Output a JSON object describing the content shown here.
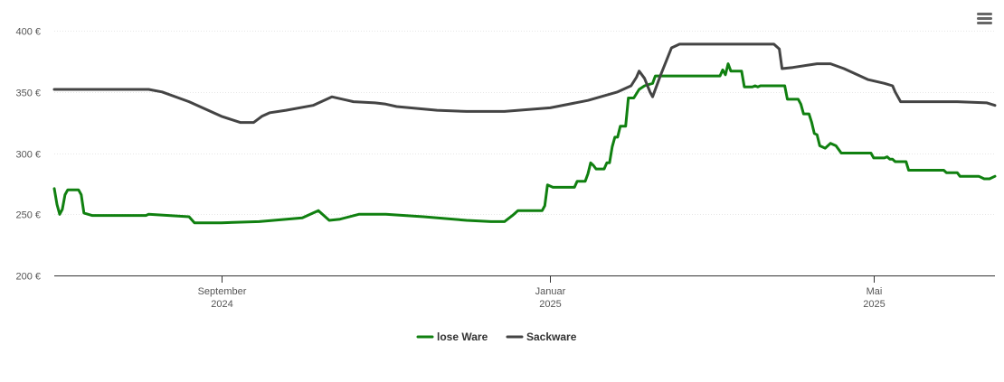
{
  "menu": {
    "icon": "hamburger-menu-icon"
  },
  "chart_data": {
    "type": "line",
    "ylim": [
      200,
      400
    ],
    "y_ticks": [
      {
        "value": 200,
        "label": "200 €"
      },
      {
        "value": 250,
        "label": "250 €"
      },
      {
        "value": 300,
        "label": "300 €"
      },
      {
        "value": 350,
        "label": "350 €"
      },
      {
        "value": 400,
        "label": "400 €"
      }
    ],
    "x_range": [
      "2024-07-01",
      "2025-06-15"
    ],
    "x_ticks": [
      {
        "date": "2024-09-01",
        "label_line1": "September",
        "label_line2": "2024"
      },
      {
        "date": "2025-01-01",
        "label_line1": "Januar",
        "label_line2": "2025"
      },
      {
        "date": "2025-05-01",
        "label_line1": "Mai",
        "label_line2": "2025"
      }
    ],
    "grid": true,
    "legend_position": "bottom-center",
    "series": [
      {
        "name": "lose Ware",
        "color": "#108010",
        "points": [
          [
            "2024-07-01",
            271
          ],
          [
            "2024-07-02",
            258
          ],
          [
            "2024-07-03",
            250
          ],
          [
            "2024-07-04",
            254
          ],
          [
            "2024-07-05",
            266
          ],
          [
            "2024-07-06",
            270
          ],
          [
            "2024-07-10",
            270
          ],
          [
            "2024-07-11",
            266
          ],
          [
            "2024-07-12",
            251
          ],
          [
            "2024-07-15",
            249
          ],
          [
            "2024-08-04",
            249
          ],
          [
            "2024-08-05",
            250
          ],
          [
            "2024-08-20",
            248
          ],
          [
            "2024-08-22",
            243
          ],
          [
            "2024-09-01",
            243
          ],
          [
            "2024-09-15",
            244
          ],
          [
            "2024-10-01",
            247
          ],
          [
            "2024-10-05",
            251
          ],
          [
            "2024-10-07",
            253
          ],
          [
            "2024-10-09",
            249
          ],
          [
            "2024-10-11",
            245
          ],
          [
            "2024-10-15",
            246
          ],
          [
            "2024-10-22",
            250
          ],
          [
            "2024-11-01",
            250
          ],
          [
            "2024-11-15",
            248
          ],
          [
            "2024-12-01",
            245
          ],
          [
            "2024-12-10",
            244
          ],
          [
            "2024-12-15",
            244
          ],
          [
            "2024-12-18",
            249
          ],
          [
            "2024-12-20",
            253
          ],
          [
            "2024-12-25",
            253
          ],
          [
            "2024-12-29",
            253
          ],
          [
            "2024-12-30",
            257
          ],
          [
            "2024-12-31",
            274
          ],
          [
            "2025-01-02",
            272
          ],
          [
            "2025-01-10",
            272
          ],
          [
            "2025-01-11",
            277
          ],
          [
            "2025-01-14",
            277
          ],
          [
            "2025-01-15",
            283
          ],
          [
            "2025-01-16",
            292
          ],
          [
            "2025-01-17",
            290
          ],
          [
            "2025-01-18",
            287
          ],
          [
            "2025-01-21",
            287
          ],
          [
            "2025-01-22",
            292
          ],
          [
            "2025-01-23",
            292
          ],
          [
            "2025-01-24",
            305
          ],
          [
            "2025-01-25",
            313
          ],
          [
            "2025-01-26",
            313
          ],
          [
            "2025-01-27",
            322
          ],
          [
            "2025-01-29",
            322
          ],
          [
            "2025-01-30",
            345
          ],
          [
            "2025-02-01",
            345
          ],
          [
            "2025-02-03",
            352
          ],
          [
            "2025-02-05",
            355
          ],
          [
            "2025-02-08",
            357
          ],
          [
            "2025-02-09",
            363
          ],
          [
            "2025-03-05",
            363
          ],
          [
            "2025-03-06",
            368
          ],
          [
            "2025-03-07",
            364
          ],
          [
            "2025-03-08",
            373
          ],
          [
            "2025-03-09",
            367
          ],
          [
            "2025-03-13",
            367
          ],
          [
            "2025-03-14",
            354
          ],
          [
            "2025-03-17",
            354
          ],
          [
            "2025-03-18",
            355
          ],
          [
            "2025-03-19",
            354
          ],
          [
            "2025-03-20",
            355
          ],
          [
            "2025-03-29",
            355
          ],
          [
            "2025-03-30",
            344
          ],
          [
            "2025-04-03",
            344
          ],
          [
            "2025-04-04",
            340
          ],
          [
            "2025-04-05",
            332
          ],
          [
            "2025-04-07",
            332
          ],
          [
            "2025-04-08",
            325
          ],
          [
            "2025-04-09",
            316
          ],
          [
            "2025-04-10",
            315
          ],
          [
            "2025-04-11",
            306
          ],
          [
            "2025-04-13",
            304
          ],
          [
            "2025-04-15",
            308
          ],
          [
            "2025-04-17",
            306
          ],
          [
            "2025-04-19",
            300
          ],
          [
            "2025-04-30",
            300
          ],
          [
            "2025-05-01",
            296
          ],
          [
            "2025-05-05",
            296
          ],
          [
            "2025-05-06",
            297
          ],
          [
            "2025-05-07",
            295
          ],
          [
            "2025-05-08",
            295
          ],
          [
            "2025-05-09",
            293
          ],
          [
            "2025-05-13",
            293
          ],
          [
            "2025-05-14",
            286
          ],
          [
            "2025-05-27",
            286
          ],
          [
            "2025-05-28",
            284
          ],
          [
            "2025-06-01",
            284
          ],
          [
            "2025-06-02",
            281
          ],
          [
            "2025-06-09",
            281
          ],
          [
            "2025-06-11",
            279
          ],
          [
            "2025-06-13",
            279
          ],
          [
            "2025-06-15",
            281
          ]
        ]
      },
      {
        "name": "Sackware",
        "color": "#444444",
        "points": [
          [
            "2024-07-01",
            352
          ],
          [
            "2024-07-15",
            352
          ],
          [
            "2024-08-05",
            352
          ],
          [
            "2024-08-10",
            350
          ],
          [
            "2024-08-20",
            342
          ],
          [
            "2024-09-01",
            330
          ],
          [
            "2024-09-08",
            325
          ],
          [
            "2024-09-13",
            325
          ],
          [
            "2024-09-16",
            330
          ],
          [
            "2024-09-19",
            333
          ],
          [
            "2024-09-25",
            335
          ],
          [
            "2024-10-05",
            339
          ],
          [
            "2024-10-12",
            346
          ],
          [
            "2024-10-20",
            342
          ],
          [
            "2024-10-28",
            341
          ],
          [
            "2024-11-01",
            340
          ],
          [
            "2024-11-05",
            338
          ],
          [
            "2024-11-20",
            335
          ],
          [
            "2024-12-01",
            334
          ],
          [
            "2024-12-15",
            334
          ],
          [
            "2025-01-01",
            337
          ],
          [
            "2025-01-15",
            343
          ],
          [
            "2025-01-26",
            350
          ],
          [
            "2025-01-31",
            355
          ],
          [
            "2025-02-02",
            362
          ],
          [
            "2025-02-03",
            367
          ],
          [
            "2025-02-05",
            361
          ],
          [
            "2025-02-07",
            350
          ],
          [
            "2025-02-08",
            346
          ],
          [
            "2025-02-11",
            364
          ],
          [
            "2025-02-15",
            386
          ],
          [
            "2025-02-18",
            389
          ],
          [
            "2025-03-25",
            389
          ],
          [
            "2025-03-27",
            385
          ],
          [
            "2025-03-28",
            369
          ],
          [
            "2025-04-01",
            370
          ],
          [
            "2025-04-10",
            373
          ],
          [
            "2025-04-15",
            373
          ],
          [
            "2025-04-20",
            369
          ],
          [
            "2025-04-29",
            360
          ],
          [
            "2025-05-05",
            357
          ],
          [
            "2025-05-08",
            355
          ],
          [
            "2025-05-09",
            350
          ],
          [
            "2025-05-11",
            342
          ],
          [
            "2025-06-01",
            342
          ],
          [
            "2025-06-12",
            341
          ],
          [
            "2025-06-15",
            339
          ]
        ]
      }
    ]
  }
}
